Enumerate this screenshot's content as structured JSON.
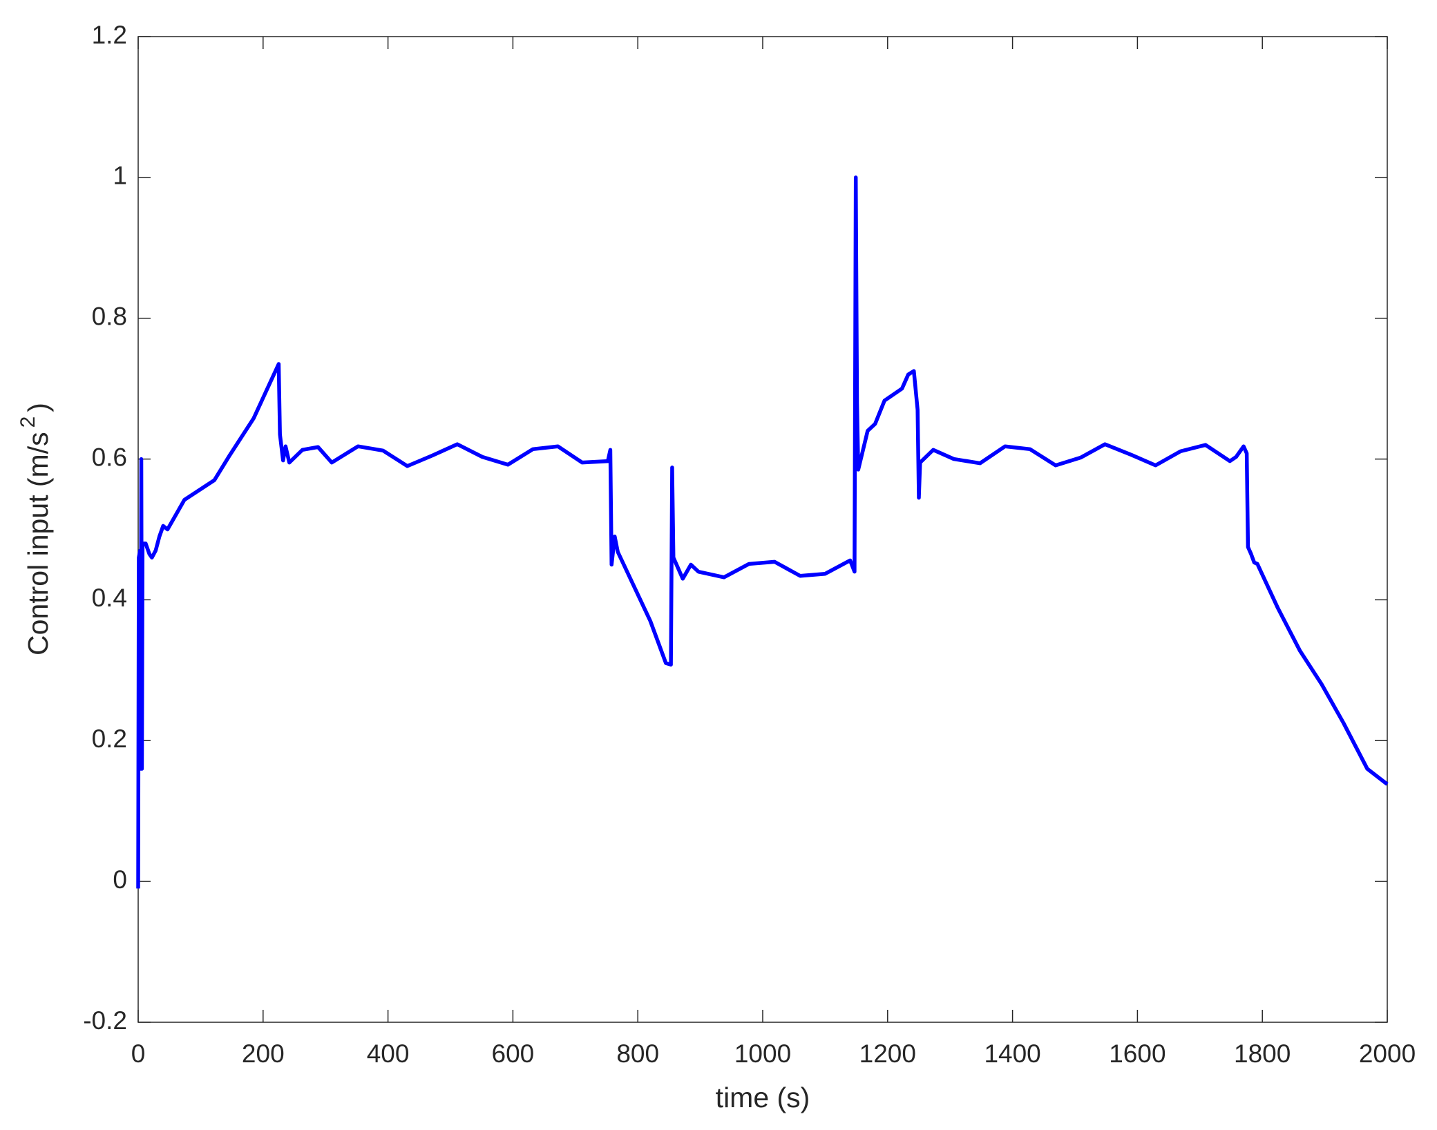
{
  "chart_data": {
    "type": "line",
    "x_label": "time (s)",
    "y_label": {
      "text": "Control input (m/s",
      "superscript": "2",
      "close": ")"
    },
    "color": "#0000ff",
    "x": [
      0,
      1,
      3,
      4,
      5,
      6,
      7,
      12,
      18,
      22,
      28,
      34,
      40,
      47,
      74,
      122,
      147,
      185,
      225,
      227,
      232,
      236,
      242,
      263,
      288,
      310,
      352,
      392,
      431,
      471,
      511,
      551,
      592,
      632,
      672,
      711,
      752,
      756,
      758,
      763,
      768,
      820,
      845,
      853,
      855,
      857,
      872,
      885,
      897,
      938,
      978,
      1019,
      1060,
      1100,
      1140,
      1147,
      1149,
      1151,
      1153,
      1168,
      1180,
      1195,
      1223,
      1233,
      1242,
      1248,
      1250,
      1252,
      1273,
      1306,
      1348,
      1388,
      1428,
      1469,
      1509,
      1548,
      1590,
      1629,
      1669,
      1709,
      1748,
      1758,
      1770,
      1775,
      1777,
      1782,
      1787,
      1792,
      1825,
      1860,
      1895,
      1930,
      1968,
      2000
    ],
    "values": [
      -0.01,
      0.46,
      0.47,
      0.16,
      0.6,
      0.16,
      0.48,
      0.48,
      0.465,
      0.46,
      0.47,
      0.49,
      0.505,
      0.5,
      0.542,
      0.57,
      0.606,
      0.658,
      0.735,
      0.635,
      0.598,
      0.618,
      0.595,
      0.613,
      0.617,
      0.595,
      0.618,
      0.612,
      0.59,
      0.605,
      0.621,
      0.603,
      0.592,
      0.614,
      0.618,
      0.595,
      0.597,
      0.613,
      0.45,
      0.49,
      0.468,
      0.37,
      0.31,
      0.308,
      0.588,
      0.46,
      0.43,
      0.45,
      0.44,
      0.432,
      0.451,
      0.454,
      0.434,
      0.437,
      0.456,
      0.44,
      1.0,
      0.68,
      0.585,
      0.64,
      0.65,
      0.683,
      0.7,
      0.72,
      0.725,
      0.67,
      0.545,
      0.595,
      0.613,
      0.6,
      0.594,
      0.618,
      0.614,
      0.591,
      0.602,
      0.621,
      0.606,
      0.591,
      0.611,
      0.62,
      0.597,
      0.603,
      0.618,
      0.608,
      0.475,
      0.465,
      0.453,
      0.451,
      0.388,
      0.328,
      0.28,
      0.225,
      0.16,
      0.138
    ],
    "xlim": [
      0,
      2000
    ],
    "xticks": [
      0,
      200,
      400,
      600,
      800,
      1000,
      1200,
      1400,
      1600,
      1800,
      2000
    ],
    "ylim": [
      -0.2,
      1.2
    ],
    "yticks": [
      -0.2,
      0,
      0.2,
      0.4,
      0.6,
      0.8,
      1,
      1.2
    ]
  }
}
